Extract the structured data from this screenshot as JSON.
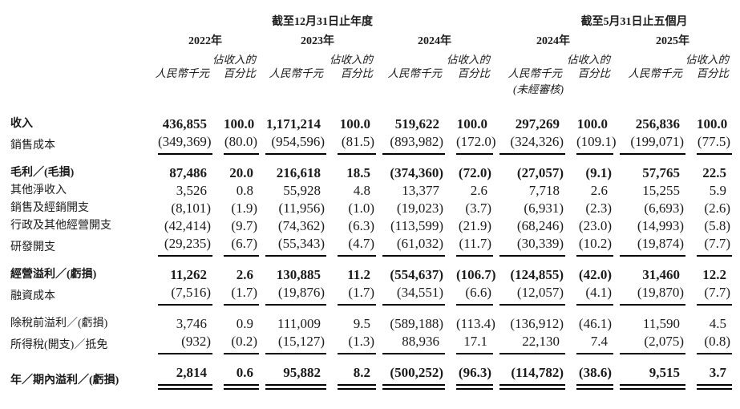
{
  "page": {
    "background": "#ffffff",
    "text_color": "#1b1b1b",
    "rule_color": "#000000"
  },
  "table": {
    "header": {
      "group_annual": "截至12月31日止年度",
      "group_five_months": "截至5月31日止五個月",
      "years": [
        "2022年",
        "2023年",
        "2024年",
        "2024年",
        "2025年"
      ],
      "rmb_label": "人民幣千元",
      "pct_label_top": "佔收入的",
      "pct_label_bottom": "百分比",
      "unaudited_note": "(未經審核)"
    },
    "rows": [
      {
        "label": "收入",
        "bold": true,
        "cells": [
          "436,855",
          "100.0",
          "1,171,214",
          "100.0",
          "519,622",
          "100.0",
          "297,269",
          "100.0",
          "256,836",
          "100.0"
        ]
      },
      {
        "label": "銷售成本",
        "cells": [
          "(349,369)",
          "(80.0)",
          "(954,596)",
          "(81.5)",
          "(893,982)",
          "(172.0)",
          "(324,326)",
          "(109.1)",
          "(199,071)",
          "(77.5)"
        ],
        "rule": "single"
      },
      {
        "spacer": true
      },
      {
        "label": "毛利／(毛損)",
        "bold": true,
        "cells": [
          "87,486",
          "20.0",
          "216,618",
          "18.5",
          "(374,360)",
          "(72.0)",
          "(27,057)",
          "(9.1)",
          "57,765",
          "22.5"
        ]
      },
      {
        "label": "其他淨收入",
        "cells": [
          "3,526",
          "0.8",
          "55,928",
          "4.8",
          "13,377",
          "2.6",
          "7,718",
          "2.6",
          "15,255",
          "5.9"
        ]
      },
      {
        "label": "銷售及經銷開支",
        "cells": [
          "(8,101)",
          "(1.9)",
          "(11,956)",
          "(1.0)",
          "(19,023)",
          "(3.7)",
          "(6,931)",
          "(2.3)",
          "(6,693)",
          "(2.6)"
        ]
      },
      {
        "label": "行政及其他經營開支",
        "cells": [
          "(42,414)",
          "(9.7)",
          "(74,362)",
          "(6.3)",
          "(113,599)",
          "(21.9)",
          "(68,246)",
          "(23.0)",
          "(14,993)",
          "(5.8)"
        ]
      },
      {
        "label": "研發開支",
        "cells": [
          "(29,235)",
          "(6.7)",
          "(55,343)",
          "(4.7)",
          "(61,032)",
          "(11.7)",
          "(30,339)",
          "(10.2)",
          "(19,874)",
          "(7.7)"
        ],
        "rule": "single"
      },
      {
        "spacer": true
      },
      {
        "label": "經營溢利／(虧損)",
        "bold": true,
        "cells": [
          "11,262",
          "2.6",
          "130,885",
          "11.2",
          "(554,637)",
          "(106.7)",
          "(124,855)",
          "(42.0)",
          "31,460",
          "12.2"
        ]
      },
      {
        "label": "融資成本",
        "cells": [
          "(7,516)",
          "(1.7)",
          "(19,876)",
          "(1.7)",
          "(34,551)",
          "(6.6)",
          "(12,057)",
          "(4.1)",
          "(19,870)",
          "(7.7)"
        ],
        "rule": "single"
      },
      {
        "spacer": true
      },
      {
        "label": "除稅前溢利／(虧損)",
        "cells": [
          "3,746",
          "0.9",
          "111,009",
          "9.5",
          "(589,188)",
          "(113.4)",
          "(136,912)",
          "(46.1)",
          "11,590",
          "4.5"
        ]
      },
      {
        "label": "所得稅(開支)／抵免",
        "cells": [
          "(932)",
          "(0.2)",
          "(15,127)",
          "(1.3)",
          "88,936",
          "17.1",
          "22,130",
          "7.4",
          "(2,075)",
          "(0.8)"
        ],
        "rule": "single"
      },
      {
        "spacer": true
      },
      {
        "label": "年／期內溢利／(虧損)",
        "bold": true,
        "cells": [
          "2,814",
          "0.6",
          "95,882",
          "8.2",
          "(500,252)",
          "(96.3)",
          "(114,782)",
          "(38.6)",
          "9,515",
          "3.7"
        ],
        "rule": "double"
      }
    ]
  }
}
